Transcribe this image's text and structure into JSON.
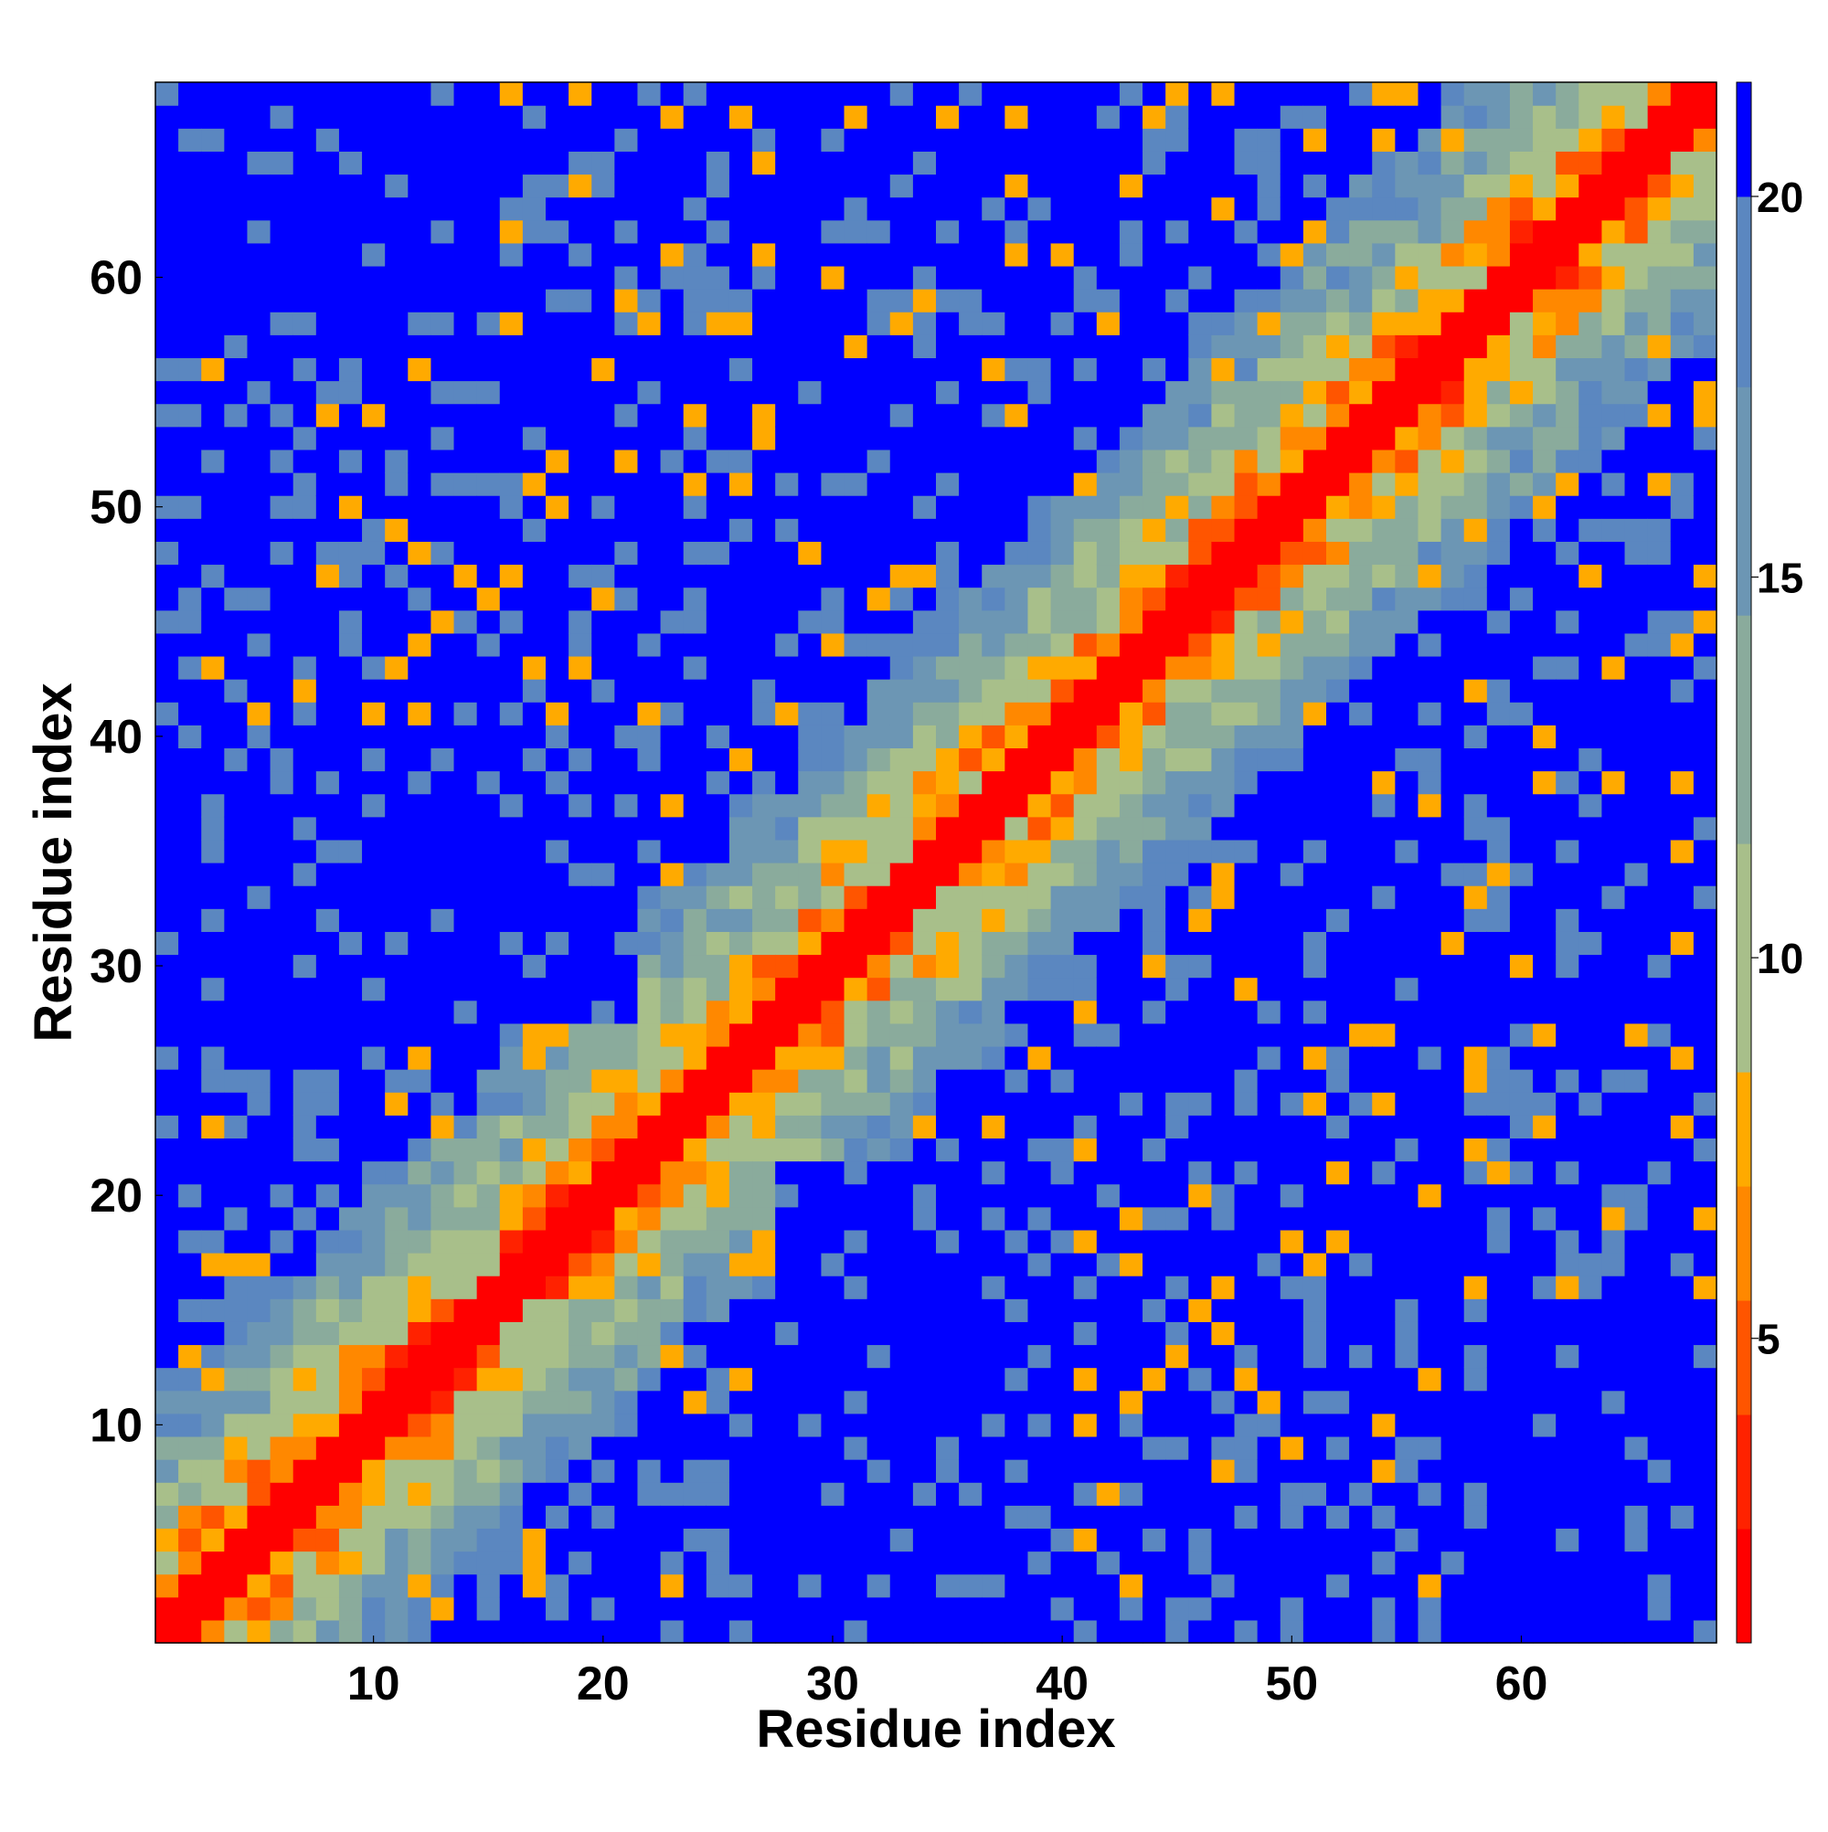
{
  "chart_data": {
    "type": "heatmap",
    "title": "",
    "xlabel": "Residue index",
    "ylabel": "Residue index",
    "n_residues": 68,
    "xlim": [
      1,
      68
    ],
    "ylim": [
      1,
      68
    ],
    "x_ticks": [
      10,
      20,
      30,
      40,
      50,
      60
    ],
    "y_ticks": [
      10,
      20,
      30,
      40,
      50,
      60
    ],
    "colorbar": {
      "ticks": [
        5,
        10,
        15,
        20
      ],
      "range": [
        1,
        21.5
      ],
      "levels": [
        {
          "max": 2.5,
          "color": "#ff0000"
        },
        {
          "max": 4.0,
          "color": "#ff2200"
        },
        {
          "max": 5.5,
          "color": "#ff5500"
        },
        {
          "max": 7.0,
          "color": "#ff8800"
        },
        {
          "max": 8.5,
          "color": "#ffaa00"
        },
        {
          "max": 11.5,
          "color": "#a8bf8a"
        },
        {
          "max": 14.5,
          "color": "#8aab9c"
        },
        {
          "max": 17.5,
          "color": "#6c96b4"
        },
        {
          "max": 20.0,
          "color": "#5b87c0"
        },
        {
          "max": 99,
          "color": "#0000ff"
        }
      ]
    },
    "features": {
      "diagonal": "distance increases from ~0 on the diagonal to ~20 far from it, symmetric matrix",
      "blue_domains": [
        {
          "x": [
            28,
            40
          ],
          "y": [
            1,
            21
          ]
        },
        {
          "x": [
            1,
            21
          ],
          "y": [
            28,
            40
          ]
        },
        {
          "x": [
            30,
            36
          ],
          "y": [
            48,
            55
          ]
        },
        {
          "x": [
            48,
            55
          ],
          "y": [
            30,
            36
          ]
        },
        {
          "x": [
            1,
            15
          ],
          "y": [
            58,
            68
          ]
        },
        {
          "x": [
            58,
            68
          ],
          "y": [
            1,
            15
          ]
        }
      ]
    }
  }
}
